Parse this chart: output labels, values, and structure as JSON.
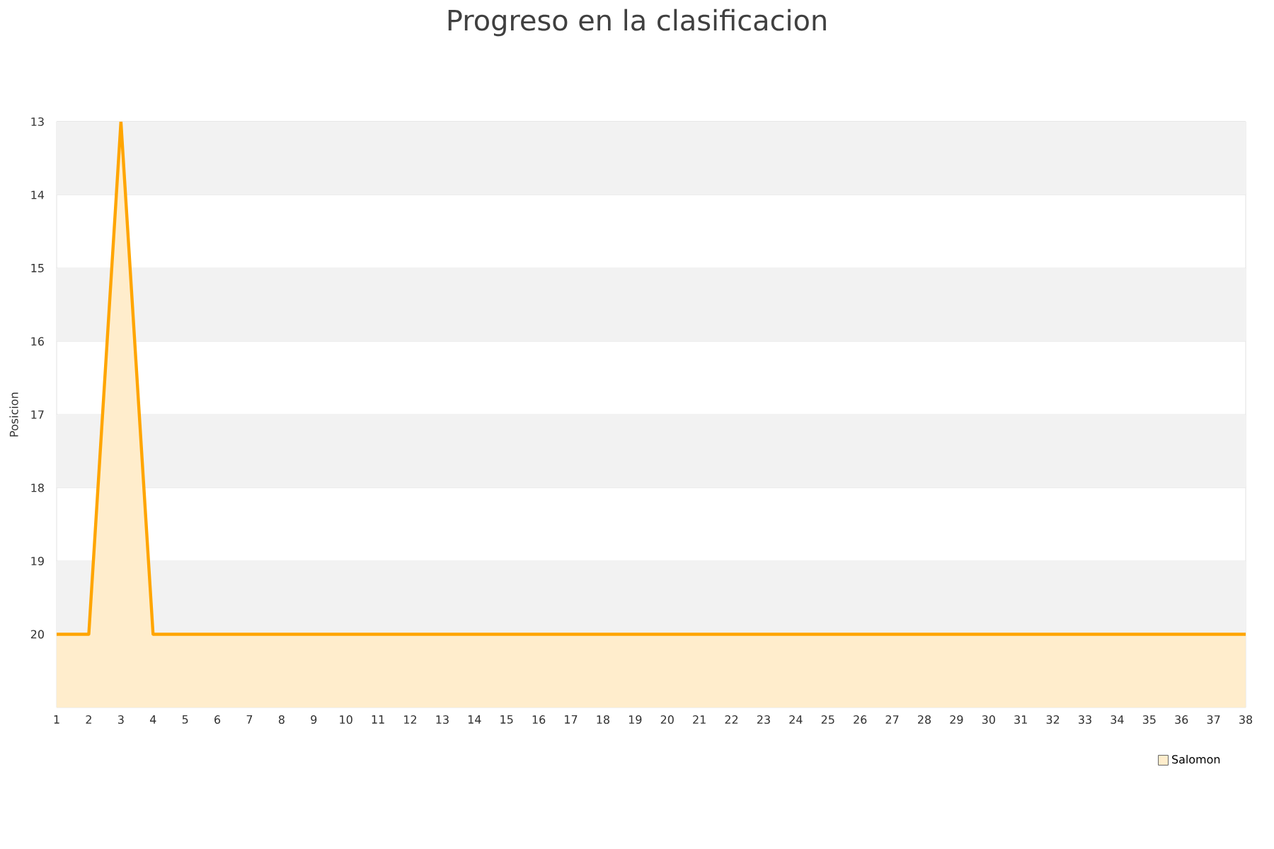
{
  "chart_data": {
    "type": "area",
    "title": "Progreso en la clasificacion",
    "ylabel": "Posicion",
    "x": [
      1,
      2,
      3,
      4,
      5,
      6,
      7,
      8,
      9,
      10,
      11,
      12,
      13,
      14,
      15,
      16,
      17,
      18,
      19,
      20,
      21,
      22,
      23,
      24,
      25,
      26,
      27,
      28,
      29,
      30,
      31,
      32,
      33,
      34,
      35,
      36,
      37,
      38
    ],
    "series": [
      {
        "name": "Salomon",
        "color": "#ffa500",
        "values": [
          20,
          20,
          13,
          20,
          20,
          20,
          20,
          20,
          20,
          20,
          20,
          20,
          20,
          20,
          20,
          20,
          20,
          20,
          20,
          20,
          20,
          20,
          20,
          20,
          20,
          20,
          20,
          20,
          20,
          20,
          20,
          20,
          20,
          20,
          20,
          20,
          20,
          20
        ]
      }
    ],
    "xlim": [
      1,
      38
    ],
    "xticks": [
      1,
      2,
      3,
      4,
      5,
      6,
      7,
      8,
      9,
      10,
      11,
      12,
      13,
      14,
      15,
      16,
      17,
      18,
      19,
      20,
      21,
      22,
      23,
      24,
      25,
      26,
      27,
      28,
      29,
      30,
      31,
      32,
      33,
      34,
      35,
      36,
      37,
      38
    ],
    "ylim": [
      21,
      13
    ],
    "yticks": [
      13,
      14,
      15,
      16,
      17,
      18,
      19,
      20
    ],
    "grid": "y",
    "legend": "bottom right",
    "bands": [
      {
        "axis": "y",
        "from": 13,
        "to": 14,
        "color": "#f2f2f2"
      },
      {
        "axis": "y",
        "from": 15,
        "to": 16,
        "color": "#f2f2f2"
      },
      {
        "axis": "y",
        "from": 17,
        "to": 18,
        "color": "#f2f2f2"
      },
      {
        "axis": "y",
        "from": 19,
        "to": 20,
        "color": "#f2f2f2"
      }
    ]
  }
}
